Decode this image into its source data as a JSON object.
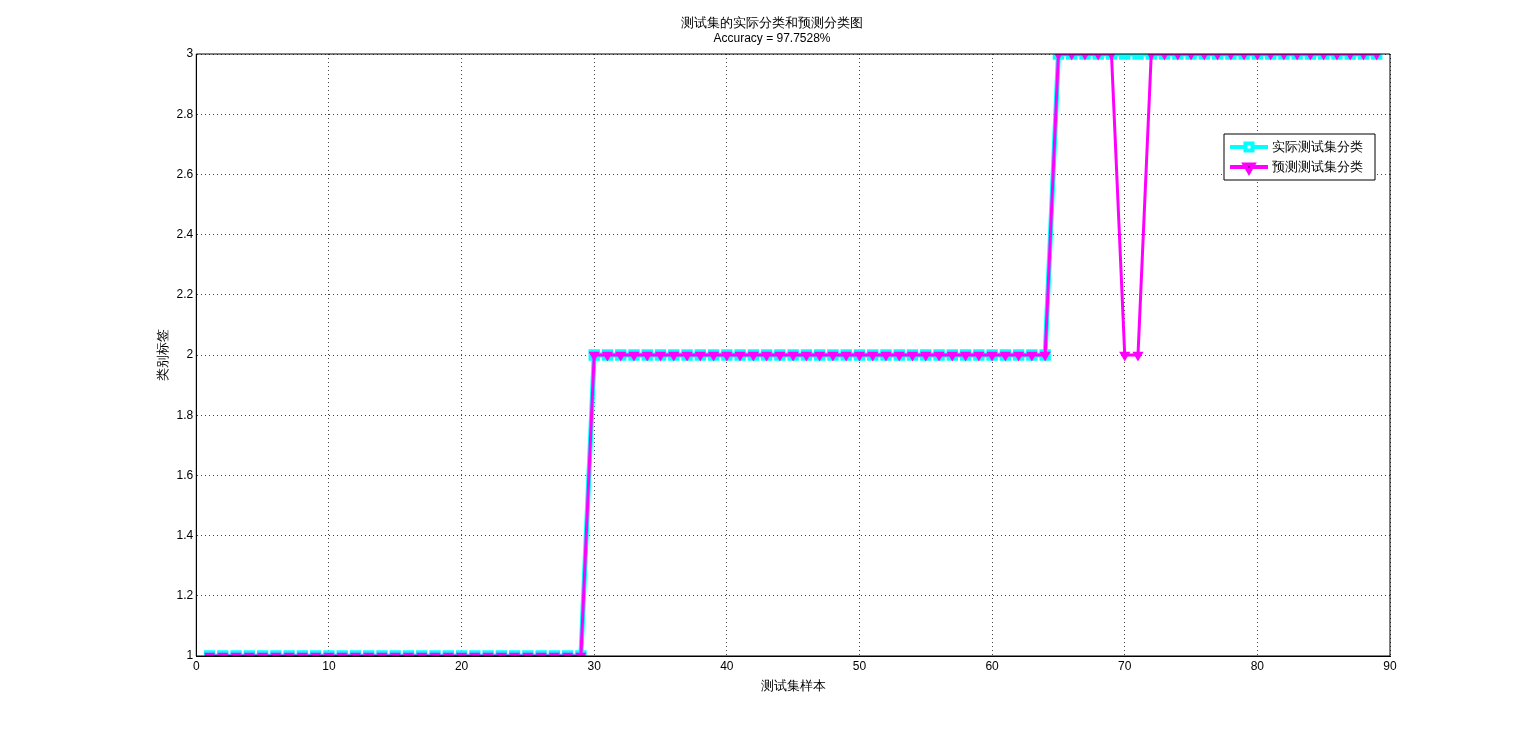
{
  "chart_data": {
    "type": "line",
    "title": "测试集的实际分类和预测分类图",
    "subtitle": "Accuracy = 97.7528%",
    "xlabel": "测试集样本",
    "ylabel": "类别标签",
    "x": [
      1,
      2,
      3,
      4,
      5,
      6,
      7,
      8,
      9,
      10,
      11,
      12,
      13,
      14,
      15,
      16,
      17,
      18,
      19,
      20,
      21,
      22,
      23,
      24,
      25,
      26,
      27,
      28,
      29,
      30,
      31,
      32,
      33,
      34,
      35,
      36,
      37,
      38,
      39,
      40,
      41,
      42,
      43,
      44,
      45,
      46,
      47,
      48,
      49,
      50,
      51,
      52,
      53,
      54,
      55,
      56,
      57,
      58,
      59,
      60,
      61,
      62,
      63,
      64,
      65,
      66,
      67,
      68,
      69,
      70,
      71,
      72,
      73,
      74,
      75,
      76,
      77,
      78,
      79,
      80,
      81,
      82,
      83,
      84,
      85,
      86,
      87,
      88,
      89
    ],
    "series": [
      {
        "name": "实际测试集分类",
        "color": "#00ffff",
        "marker": "square",
        "values": [
          1,
          1,
          1,
          1,
          1,
          1,
          1,
          1,
          1,
          1,
          1,
          1,
          1,
          1,
          1,
          1,
          1,
          1,
          1,
          1,
          1,
          1,
          1,
          1,
          1,
          1,
          1,
          1,
          1,
          2,
          2,
          2,
          2,
          2,
          2,
          2,
          2,
          2,
          2,
          2,
          2,
          2,
          2,
          2,
          2,
          2,
          2,
          2,
          2,
          2,
          2,
          2,
          2,
          2,
          2,
          2,
          2,
          2,
          2,
          2,
          2,
          2,
          2,
          2,
          3,
          3,
          3,
          3,
          3,
          3,
          3,
          3,
          3,
          3,
          3,
          3,
          3,
          3,
          3,
          3,
          3,
          3,
          3,
          3,
          3,
          3,
          3,
          3,
          3
        ]
      },
      {
        "name": "预测测试集分类",
        "color": "#ff00ff",
        "marker": "triangle",
        "values": [
          1,
          1,
          1,
          1,
          1,
          1,
          1,
          1,
          1,
          1,
          1,
          1,
          1,
          1,
          1,
          1,
          1,
          1,
          1,
          1,
          1,
          1,
          1,
          1,
          1,
          1,
          1,
          1,
          1,
          2,
          2,
          2,
          2,
          2,
          2,
          2,
          2,
          2,
          2,
          2,
          2,
          2,
          2,
          2,
          2,
          2,
          2,
          2,
          2,
          2,
          2,
          2,
          2,
          2,
          2,
          2,
          2,
          2,
          2,
          2,
          2,
          2,
          2,
          2,
          3,
          3,
          3,
          3,
          3,
          2,
          2,
          3,
          3,
          3,
          3,
          3,
          3,
          3,
          3,
          3,
          3,
          3,
          3,
          3,
          3,
          3,
          3,
          3,
          3
        ]
      }
    ],
    "xlim": [
      0,
      90
    ],
    "xticks": [
      0,
      10,
      20,
      30,
      40,
      50,
      60,
      70,
      80,
      90
    ],
    "ylim": [
      1,
      3
    ],
    "yticks": [
      1,
      1.2,
      1.4,
      1.6,
      1.8,
      2,
      2.2,
      2.4,
      2.6,
      2.8,
      3
    ],
    "grid": true,
    "legend": "top right",
    "line_style": "solid"
  }
}
